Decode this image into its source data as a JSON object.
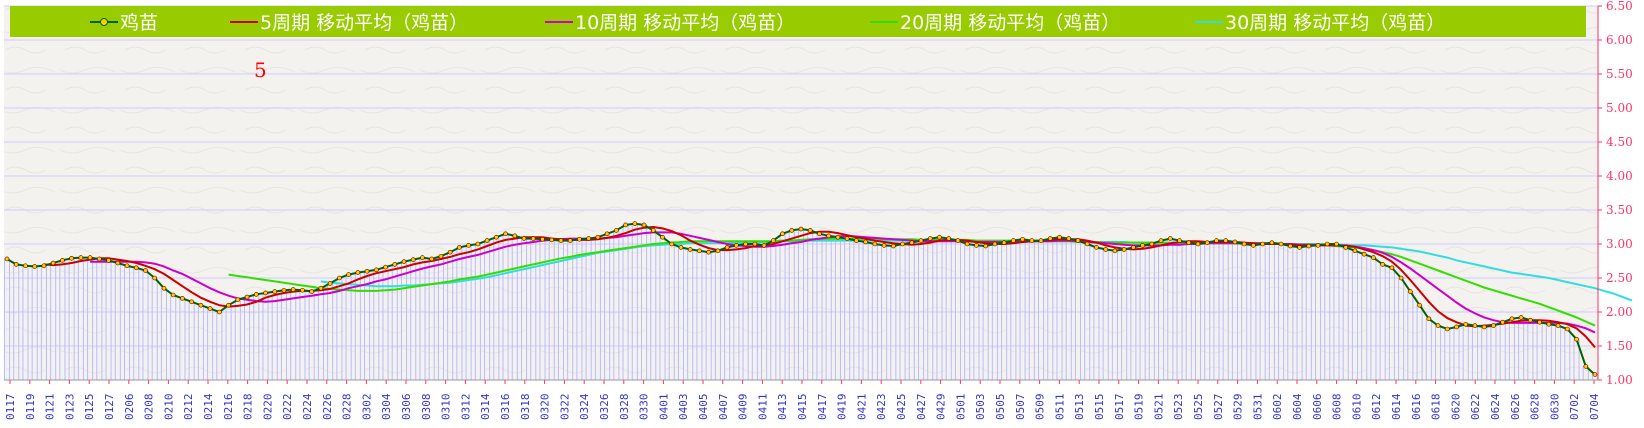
{
  "legend": [
    {
      "name": "鸡苗",
      "color": "#006400",
      "marker": true
    },
    {
      "name": "5周期 移动平均（鸡苗）",
      "color": "#cc0000"
    },
    {
      "name": "10周期 移动平均（鸡苗）",
      "color": "#cc00cc"
    },
    {
      "name": "20周期 移动平均（鸡苗）",
      "color": "#33dd00"
    },
    {
      "name": "30周期 移动平均（鸡苗）",
      "color": "#33dddd"
    }
  ],
  "annotation": "5",
  "colors": {
    "legend_bg": "#99cc00",
    "axis_text": "#ff3366",
    "xtick_text": "#3333cc",
    "bar": "#bbbbff",
    "grid": "#ccccff"
  },
  "chart_data": {
    "type": "line",
    "ylim": [
      1.0,
      6.5
    ],
    "yticks": [
      "1.00",
      "1.50",
      "2.00",
      "2.50",
      "3.00",
      "3.50",
      "4.00",
      "4.50",
      "5.00",
      "5.50",
      "6.00",
      "6.50"
    ],
    "xticks": [
      "0117",
      "0119",
      "0121",
      "0123",
      "0125",
      "0127",
      "0206",
      "0208",
      "0210",
      "0212",
      "0214",
      "0216",
      "0218",
      "0220",
      "0222",
      "0224",
      "0226",
      "0228",
      "0302",
      "0304",
      "0306",
      "0308",
      "0310",
      "0312",
      "0314",
      "0316",
      "0318",
      "0320",
      "0322",
      "0324",
      "0326",
      "0328",
      "0330",
      "0401",
      "0403",
      "0405",
      "0407",
      "0409",
      "0411",
      "0413",
      "0415",
      "0417",
      "0419",
      "0421",
      "0423",
      "0425",
      "0427",
      "0429",
      "0501",
      "0503",
      "0505",
      "0507",
      "0509",
      "0511",
      "0513",
      "0515",
      "0517",
      "0519",
      "0521",
      "0523",
      "0525",
      "0527",
      "0529",
      "0531",
      "0602",
      "0604",
      "0606",
      "0608",
      "0610",
      "0612",
      "0614",
      "0616",
      "0618",
      "0620",
      "0622",
      "0624",
      "0626",
      "0628",
      "0630",
      "0702",
      "0704"
    ],
    "series": [
      {
        "name": "鸡苗",
        "values": [
          2.78,
          2.7,
          2.68,
          2.67,
          2.68,
          2.72,
          2.76,
          2.79,
          2.8,
          2.8,
          2.78,
          2.76,
          2.72,
          2.68,
          2.65,
          2.61,
          2.5,
          2.35,
          2.25,
          2.2,
          2.15,
          2.1,
          2.05,
          2.0,
          2.1,
          2.18,
          2.22,
          2.26,
          2.28,
          2.3,
          2.32,
          2.33,
          2.32,
          2.3,
          2.35,
          2.42,
          2.5,
          2.55,
          2.58,
          2.6,
          2.62,
          2.66,
          2.7,
          2.74,
          2.77,
          2.8,
          2.78,
          2.82,
          2.88,
          2.95,
          2.98,
          3.0,
          3.05,
          3.1,
          3.15,
          3.12,
          3.08,
          3.08,
          3.07,
          3.06,
          3.05,
          3.05,
          3.07,
          3.08,
          3.1,
          3.15,
          3.2,
          3.28,
          3.3,
          3.28,
          3.2,
          3.1,
          3.0,
          2.95,
          2.92,
          2.9,
          2.88,
          2.9,
          2.95,
          2.98,
          3.0,
          3.0,
          2.98,
          3.05,
          3.15,
          3.2,
          3.22,
          3.2,
          3.15,
          3.12,
          3.1,
          3.08,
          3.05,
          3.03,
          3.0,
          2.98,
          2.97,
          3.0,
          3.02,
          3.05,
          3.08,
          3.1,
          3.08,
          3.05,
          3.0,
          2.98,
          2.97,
          3.0,
          3.02,
          3.05,
          3.07,
          3.05,
          3.05,
          3.08,
          3.1,
          3.08,
          3.05,
          3.0,
          2.95,
          2.92,
          2.9,
          2.92,
          2.95,
          2.98,
          3.0,
          3.05,
          3.08,
          3.05,
          3.02,
          3.0,
          3.02,
          3.05,
          3.05,
          3.03,
          3.0,
          2.98,
          3.0,
          3.02,
          3.0,
          2.97,
          2.95,
          2.97,
          2.98,
          3.0,
          3.0,
          2.95,
          2.9,
          2.85,
          2.8,
          2.7,
          2.65,
          2.5,
          2.3,
          2.1,
          1.9,
          1.8,
          1.75,
          1.78,
          1.82,
          1.8,
          1.78,
          1.8,
          1.85,
          1.9,
          1.92,
          1.88,
          1.85,
          1.82,
          1.8,
          1.75,
          1.6,
          1.2,
          1.08
        ]
      },
      {
        "name": "5周期 移动平均（鸡苗）",
        "values": [
          null,
          null,
          null,
          null,
          2.7,
          2.69,
          2.7,
          2.72,
          2.75,
          2.77,
          2.79,
          2.79,
          2.77,
          2.75,
          2.72,
          2.68,
          2.63,
          2.56,
          2.47,
          2.38,
          2.29,
          2.21,
          2.15,
          2.1,
          2.08,
          2.09,
          2.11,
          2.15,
          2.21,
          2.25,
          2.28,
          2.3,
          2.31,
          2.31,
          2.32,
          2.34,
          2.38,
          2.42,
          2.48,
          2.53,
          2.57,
          2.6,
          2.63,
          2.66,
          2.7,
          2.73,
          2.75,
          2.78,
          2.81,
          2.85,
          2.88,
          2.92,
          2.97,
          3.02,
          3.06,
          3.08,
          3.1,
          3.1,
          3.1,
          3.08,
          3.07,
          3.06,
          3.06,
          3.06,
          3.07,
          3.09,
          3.12,
          3.16,
          3.21,
          3.24,
          3.25,
          3.23,
          3.19,
          3.13,
          3.05,
          2.99,
          2.94,
          2.91,
          2.91,
          2.92,
          2.94,
          2.97,
          2.98,
          3.0,
          3.04,
          3.08,
          3.12,
          3.16,
          3.18,
          3.18,
          3.16,
          3.13,
          3.1,
          3.08,
          3.05,
          3.03,
          3.01,
          3.0,
          2.99,
          3.0,
          3.02,
          3.05,
          3.06,
          3.06,
          3.05,
          3.03,
          3.01,
          3.0,
          3.0,
          3.01,
          3.03,
          3.04,
          3.05,
          3.06,
          3.07,
          3.07,
          3.07,
          3.05,
          3.02,
          2.98,
          2.95,
          2.93,
          2.92,
          2.93,
          2.95,
          2.98,
          3.01,
          3.03,
          3.04,
          3.04,
          3.03,
          3.03,
          3.03,
          3.03,
          3.02,
          3.01,
          3.0,
          3.0,
          3.0,
          2.99,
          2.98,
          2.98,
          2.98,
          2.98,
          2.98,
          2.97,
          2.96,
          2.92,
          2.88,
          2.82,
          2.74,
          2.62,
          2.47,
          2.31,
          2.15,
          2.01,
          1.91,
          1.85,
          1.8,
          1.79,
          1.8,
          1.81,
          1.83,
          1.85,
          1.87,
          1.88,
          1.88,
          1.87,
          1.85,
          1.82,
          1.76,
          1.64,
          1.48
        ]
      },
      {
        "name": "10周期 移动平均（鸡苗）",
        "values": [
          null,
          null,
          null,
          null,
          null,
          null,
          null,
          null,
          null,
          2.74,
          2.74,
          2.74,
          2.74,
          2.74,
          2.74,
          2.73,
          2.71,
          2.67,
          2.61,
          2.56,
          2.49,
          2.42,
          2.35,
          2.29,
          2.24,
          2.2,
          2.18,
          2.16,
          2.15,
          2.16,
          2.18,
          2.2,
          2.22,
          2.24,
          2.26,
          2.28,
          2.31,
          2.35,
          2.38,
          2.41,
          2.45,
          2.48,
          2.52,
          2.56,
          2.6,
          2.64,
          2.67,
          2.7,
          2.74,
          2.78,
          2.81,
          2.84,
          2.88,
          2.92,
          2.96,
          2.99,
          3.01,
          3.03,
          3.05,
          3.06,
          3.07,
          3.08,
          3.08,
          3.08,
          3.08,
          3.09,
          3.1,
          3.12,
          3.14,
          3.16,
          3.17,
          3.17,
          3.17,
          3.15,
          3.12,
          3.09,
          3.06,
          3.03,
          3.0,
          2.98,
          2.97,
          2.96,
          2.96,
          2.97,
          2.99,
          3.01,
          3.03,
          3.06,
          3.08,
          3.1,
          3.11,
          3.12,
          3.11,
          3.1,
          3.09,
          3.08,
          3.07,
          3.06,
          3.05,
          3.04,
          3.04,
          3.04,
          3.04,
          3.04,
          3.04,
          3.03,
          3.03,
          3.03,
          3.03,
          3.03,
          3.03,
          3.04,
          3.04,
          3.04,
          3.05,
          3.05,
          3.04,
          3.03,
          3.02,
          3.01,
          3.0,
          2.99,
          2.98,
          2.98,
          2.98,
          2.98,
          2.99,
          2.99,
          3.0,
          3.0,
          3.01,
          3.01,
          3.01,
          3.01,
          3.01,
          3.01,
          3.01,
          3.01,
          3.0,
          3.0,
          2.99,
          2.99,
          2.99,
          2.99,
          2.98,
          2.98,
          2.96,
          2.94,
          2.91,
          2.87,
          2.81,
          2.73,
          2.64,
          2.54,
          2.44,
          2.34,
          2.24,
          2.14,
          2.05,
          1.98,
          1.92,
          1.88,
          1.85,
          1.84,
          1.84,
          1.84,
          1.84,
          1.84,
          1.84,
          1.83,
          1.8,
          1.76,
          1.7
        ]
      },
      {
        "name": "20周期 移动平均（鸡苗）",
        "values": [
          null,
          null,
          null,
          null,
          null,
          null,
          null,
          null,
          null,
          null,
          null,
          null,
          null,
          null,
          null,
          null,
          null,
          null,
          null,
          null,
          null,
          null,
          null,
          null,
          2.55,
          2.53,
          2.51,
          2.49,
          2.47,
          2.45,
          2.43,
          2.41,
          2.39,
          2.37,
          2.35,
          2.34,
          2.33,
          2.32,
          2.31,
          2.31,
          2.31,
          2.32,
          2.33,
          2.35,
          2.37,
          2.39,
          2.41,
          2.43,
          2.45,
          2.48,
          2.5,
          2.52,
          2.55,
          2.58,
          2.61,
          2.64,
          2.67,
          2.7,
          2.73,
          2.76,
          2.79,
          2.81,
          2.84,
          2.86,
          2.88,
          2.9,
          2.92,
          2.94,
          2.96,
          2.98,
          3.0,
          3.01,
          3.02,
          3.03,
          3.04,
          3.04,
          3.04,
          3.04,
          3.04,
          3.04,
          3.04,
          3.04,
          3.04,
          3.04,
          3.05,
          3.05,
          3.06,
          3.07,
          3.07,
          3.08,
          3.08,
          3.08,
          3.08,
          3.08,
          3.08,
          3.07,
          3.07,
          3.07,
          3.07,
          3.06,
          3.06,
          3.06,
          3.06,
          3.06,
          3.06,
          3.05,
          3.05,
          3.05,
          3.05,
          3.05,
          3.04,
          3.04,
          3.04,
          3.04,
          3.04,
          3.04,
          3.03,
          3.03,
          3.03,
          3.02,
          3.02,
          3.02,
          3.02,
          3.02,
          3.02,
          3.02,
          3.01,
          3.01,
          3.01,
          3.01,
          3.01,
          3.01,
          3.01,
          3.01,
          3.0,
          3.0,
          3.0,
          3.0,
          3.0,
          3.0,
          2.99,
          2.99,
          2.99,
          2.98,
          2.97,
          2.96,
          2.95,
          2.93,
          2.91,
          2.88,
          2.85,
          2.81,
          2.76,
          2.71,
          2.66,
          2.61,
          2.56,
          2.51,
          2.46,
          2.41,
          2.36,
          2.32,
          2.28,
          2.24,
          2.2,
          2.16,
          2.12,
          2.07,
          2.02,
          1.97,
          1.92,
          1.86,
          1.8
        ]
      },
      {
        "name": "30周期 移动平均（鸡苗）",
        "values": [
          null,
          null,
          null,
          null,
          null,
          null,
          null,
          null,
          null,
          null,
          null,
          null,
          null,
          null,
          null,
          null,
          null,
          null,
          null,
          null,
          null,
          null,
          null,
          null,
          null,
          null,
          null,
          null,
          null,
          null,
          null,
          null,
          null,
          null,
          2.45,
          2.43,
          2.42,
          2.41,
          2.4,
          2.39,
          2.38,
          2.38,
          2.38,
          2.39,
          2.39,
          2.4,
          2.41,
          2.42,
          2.43,
          2.45,
          2.47,
          2.49,
          2.51,
          2.54,
          2.57,
          2.6,
          2.63,
          2.66,
          2.69,
          2.72,
          2.75,
          2.78,
          2.81,
          2.84,
          2.87,
          2.89,
          2.91,
          2.93,
          2.95,
          2.97,
          2.98,
          2.99,
          3.0,
          3.0,
          3.01,
          3.01,
          3.01,
          3.01,
          3.01,
          3.02,
          3.02,
          3.02,
          3.03,
          3.03,
          3.04,
          3.04,
          3.04,
          3.05,
          3.05,
          3.05,
          3.05,
          3.05,
          3.05,
          3.05,
          3.05,
          3.05,
          3.05,
          3.05,
          3.05,
          3.05,
          3.05,
          3.05,
          3.05,
          3.05,
          3.05,
          3.04,
          3.04,
          3.04,
          3.04,
          3.04,
          3.04,
          3.04,
          3.04,
          3.04,
          3.04,
          3.04,
          3.04,
          3.03,
          3.03,
          3.03,
          3.03,
          3.03,
          3.02,
          3.02,
          3.02,
          3.02,
          3.02,
          3.02,
          3.02,
          3.02,
          3.02,
          3.02,
          3.02,
          3.01,
          3.01,
          3.01,
          3.01,
          3.01,
          3.0,
          3.0,
          3.0,
          3.0,
          3.0,
          2.99,
          2.99,
          2.99,
          2.98,
          2.98,
          2.97,
          2.96,
          2.95,
          2.93,
          2.91,
          2.89,
          2.86,
          2.83,
          2.8,
          2.76,
          2.73,
          2.7,
          2.67,
          2.64,
          2.61,
          2.58,
          2.56,
          2.54,
          2.52,
          2.5,
          2.47,
          2.44,
          2.41,
          2.38,
          2.35,
          2.31,
          2.27,
          2.22,
          2.17
        ]
      }
    ]
  }
}
